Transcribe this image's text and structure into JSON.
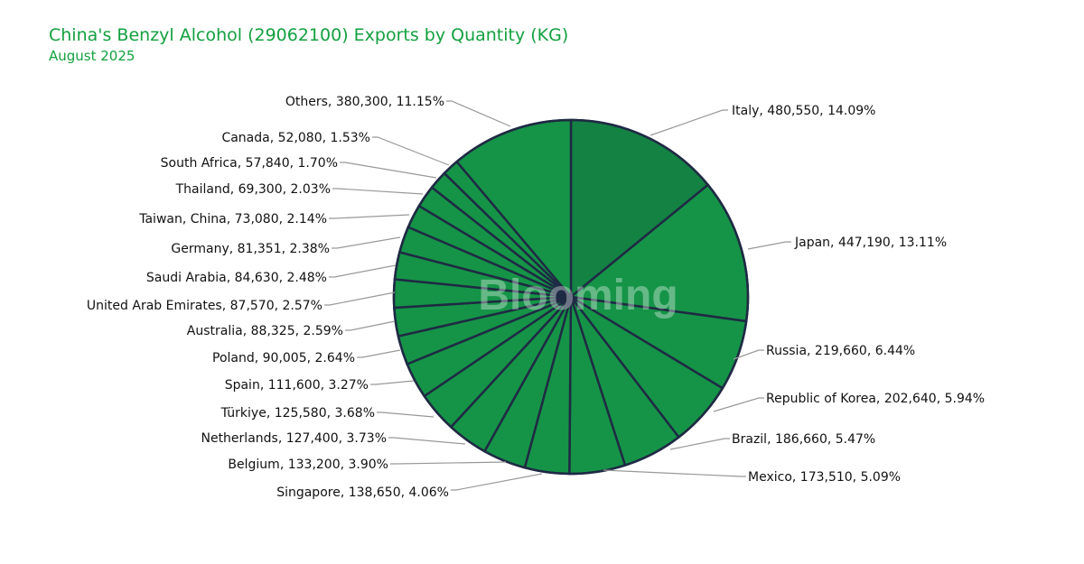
{
  "chart_data": {
    "type": "pie",
    "title": "China's Benzyl Alcohol (29062100) Exports by Quantity (KG)",
    "subtitle": "August 2025",
    "watermark": "Blooming",
    "colors": {
      "first_slice": "#138243",
      "slice": "#159447",
      "border": "#1f2a44",
      "leader": "#999999"
    },
    "slices": [
      {
        "label": "Italy",
        "value": 480550,
        "percent": "14.09%",
        "text": "Italy, 480,550, 14.09%"
      },
      {
        "label": "Japan",
        "value": 447190,
        "percent": "13.11%",
        "text": "Japan, 447,190, 13.11%"
      },
      {
        "label": "Russia",
        "value": 219660,
        "percent": "6.44%",
        "text": "Russia, 219,660, 6.44%"
      },
      {
        "label": "Republic of Korea",
        "value": 202640,
        "percent": "5.94%",
        "text": "Republic of Korea, 202,640, 5.94%"
      },
      {
        "label": "Brazil",
        "value": 186660,
        "percent": "5.47%",
        "text": "Brazil, 186,660, 5.47%"
      },
      {
        "label": "Mexico",
        "value": 173510,
        "percent": "5.09%",
        "text": "Mexico, 173,510, 5.09%"
      },
      {
        "label": "Singapore",
        "value": 138650,
        "percent": "4.06%",
        "text": "Singapore, 138,650, 4.06%"
      },
      {
        "label": "Belgium",
        "value": 133200,
        "percent": "3.90%",
        "text": "Belgium, 133,200, 3.90%"
      },
      {
        "label": "Netherlands",
        "value": 127400,
        "percent": "3.73%",
        "text": "Netherlands, 127,400, 3.73%"
      },
      {
        "label": "Türkiye",
        "value": 125580,
        "percent": "3.68%",
        "text": "Türkiye, 125,580, 3.68%"
      },
      {
        "label": "Spain",
        "value": 111600,
        "percent": "3.27%",
        "text": "Spain, 111,600, 3.27%"
      },
      {
        "label": "Poland",
        "value": 90005,
        "percent": "2.64%",
        "text": "Poland, 90,005, 2.64%"
      },
      {
        "label": "Australia",
        "value": 88325,
        "percent": "2.59%",
        "text": "Australia, 88,325, 2.59%"
      },
      {
        "label": "United Arab Emirates",
        "value": 87570,
        "percent": "2.57%",
        "text": "United Arab Emirates, 87,570, 2.57%"
      },
      {
        "label": "Saudi Arabia",
        "value": 84630,
        "percent": "2.48%",
        "text": "Saudi Arabia, 84,630, 2.48%"
      },
      {
        "label": "Germany",
        "value": 81351,
        "percent": "2.38%",
        "text": "Germany, 81,351, 2.38%"
      },
      {
        "label": "Taiwan,  China",
        "value": 73080,
        "percent": "2.14%",
        "text": "Taiwan,  China, 73,080, 2.14%"
      },
      {
        "label": "Thailand",
        "value": 69300,
        "percent": "2.03%",
        "text": "Thailand, 69,300, 2.03%"
      },
      {
        "label": "South Africa",
        "value": 57840,
        "percent": "1.70%",
        "text": "South Africa, 57,840, 1.70%"
      },
      {
        "label": "Canada",
        "value": 52080,
        "percent": "1.53%",
        "text": "Canada, 52,080, 1.53%"
      },
      {
        "label": "Others",
        "value": 380300,
        "percent": "11.15%",
        "text": "Others, 380,300, 11.15%"
      }
    ]
  }
}
